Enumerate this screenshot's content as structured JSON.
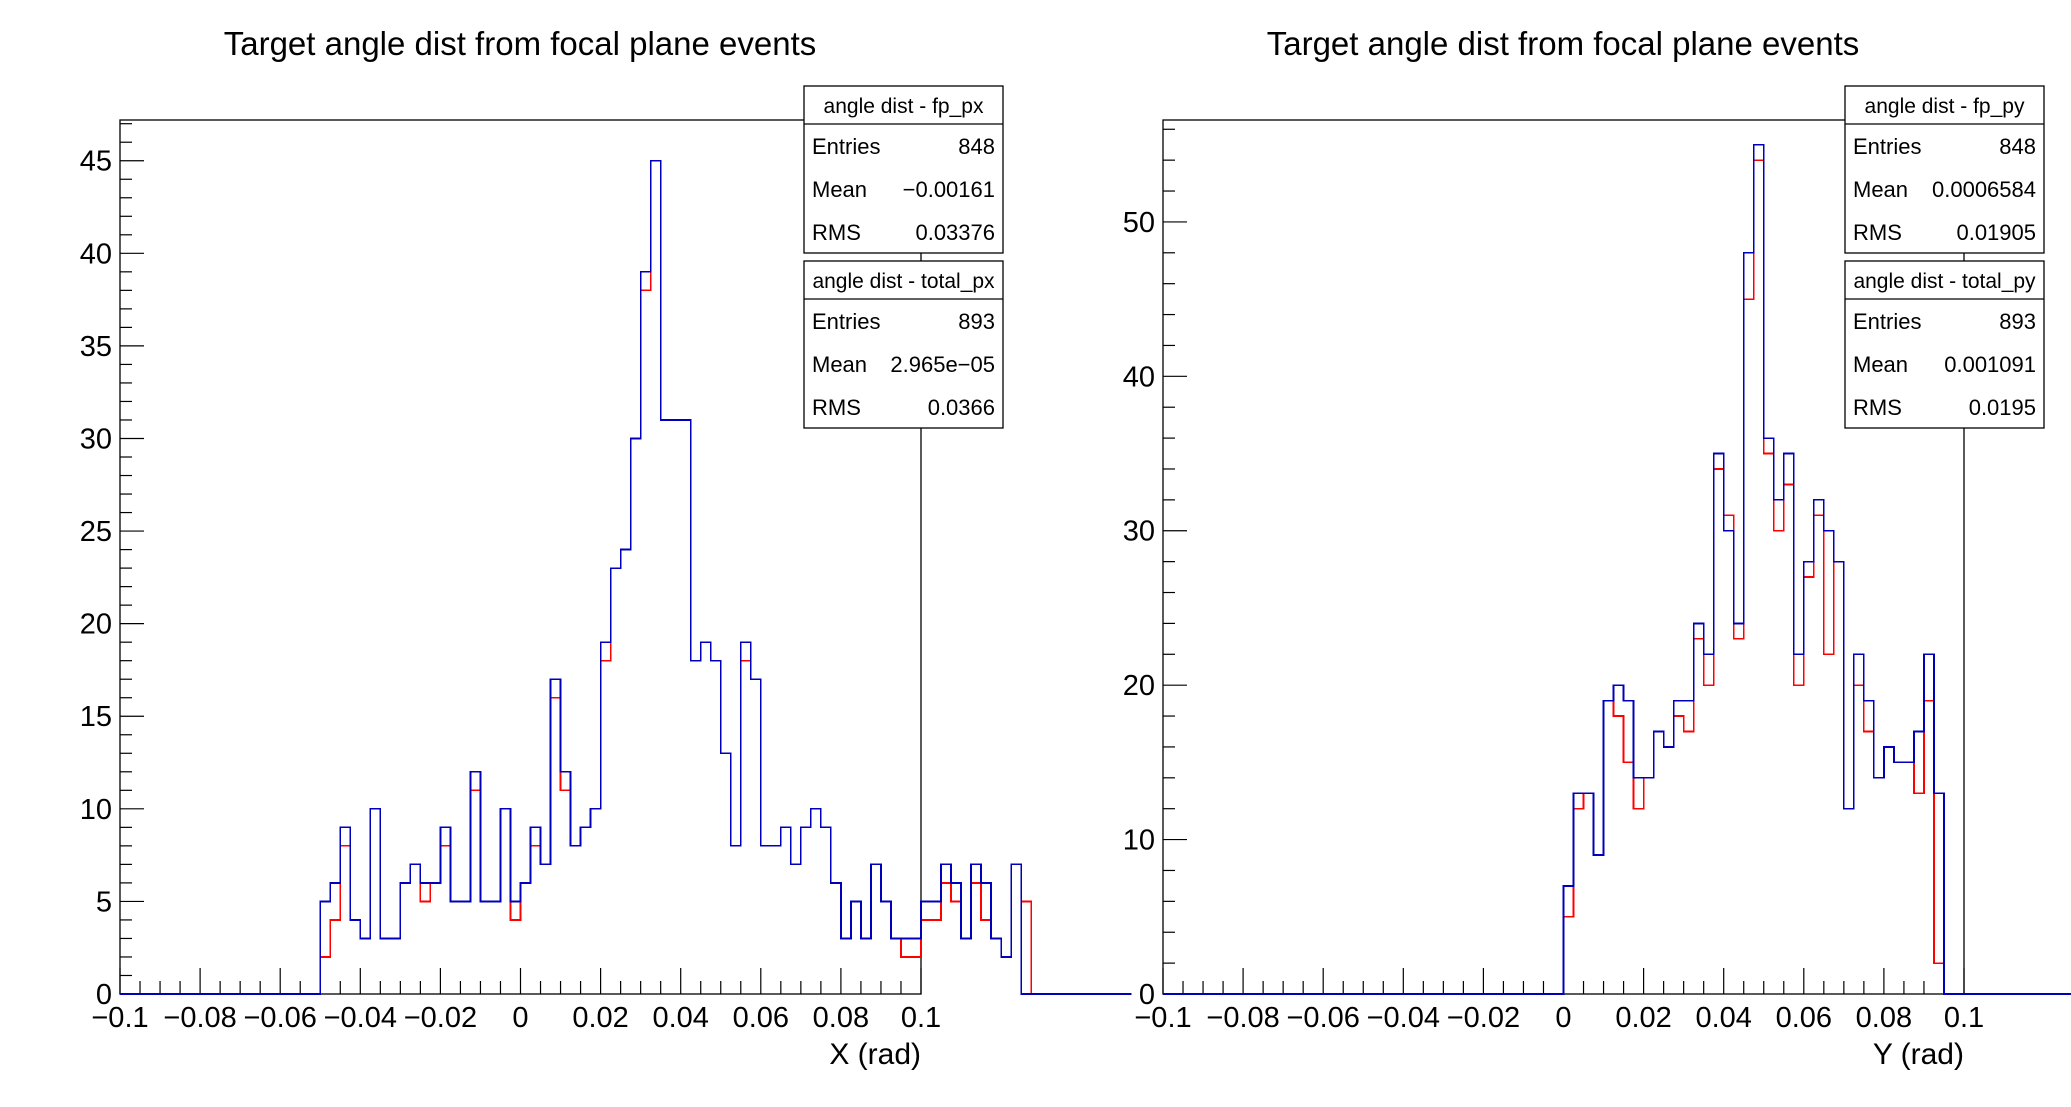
{
  "chart_data": [
    {
      "type": "histogram",
      "title": "Target angle dist from focal plane events",
      "xlabel": "X (rad)",
      "ylabel": "",
      "xlim": [
        -0.1,
        0.1
      ],
      "ylim": [
        0,
        47.2
      ],
      "bin_start": -0.1,
      "bin_width": 0.0025,
      "x_ticks": [
        "-0.1",
        "-0.08",
        "-0.06",
        "-0.04",
        "-0.02",
        "0",
        "0.02",
        "0.04",
        "0.06",
        "0.08",
        "0.1"
      ],
      "y_ticks": [
        "0",
        "5",
        "10",
        "15",
        "20",
        "25",
        "30",
        "35",
        "40",
        "45"
      ],
      "grid": false,
      "series": [
        {
          "name": "angle dist - fp_px",
          "color": "#ff0000",
          "values": [
            0,
            0,
            0,
            0,
            0,
            0,
            0,
            0,
            0,
            0,
            0,
            0,
            0,
            0,
            0,
            0,
            0,
            0,
            0,
            0,
            2,
            4,
            8,
            4,
            3,
            10,
            3,
            3,
            6,
            7,
            5,
            6,
            8,
            5,
            5,
            11,
            5,
            5,
            10,
            4,
            6,
            8,
            7,
            16,
            11,
            8,
            9,
            10,
            18,
            23,
            24,
            30,
            38,
            45,
            31,
            31,
            31,
            18,
            19,
            18,
            13,
            8,
            18,
            17,
            8,
            8,
            9,
            7,
            9,
            10,
            9,
            6,
            3,
            5,
            3,
            7,
            5,
            3,
            2,
            2,
            4,
            4,
            6,
            5,
            3,
            6,
            4,
            3,
            2,
            7,
            5,
            0,
            0,
            0,
            0,
            0,
            0,
            0,
            0,
            0,
            0
          ]
        },
        {
          "name": "angle dist - total_px",
          "color": "#0000bb",
          "values": [
            0,
            0,
            0,
            0,
            0,
            0,
            0,
            0,
            0,
            0,
            0,
            0,
            0,
            0,
            0,
            0,
            0,
            0,
            0,
            0,
            5,
            6,
            9,
            4,
            3,
            10,
            3,
            3,
            6,
            7,
            6,
            6,
            9,
            5,
            5,
            12,
            5,
            5,
            10,
            5,
            6,
            9,
            7,
            17,
            12,
            8,
            9,
            10,
            19,
            23,
            24,
            30,
            39,
            45,
            31,
            31,
            31,
            18,
            19,
            18,
            13,
            8,
            19,
            17,
            8,
            8,
            9,
            7,
            9,
            10,
            9,
            6,
            3,
            5,
            3,
            7,
            5,
            3,
            3,
            3,
            5,
            5,
            7,
            6,
            3,
            7,
            6,
            3,
            2,
            7,
            0,
            0,
            0,
            0,
            0,
            0,
            0,
            0,
            0,
            0,
            0
          ]
        }
      ],
      "stats_boxes": [
        {
          "title": "angle dist - fp_px",
          "rows": [
            [
              "Entries",
              "848"
            ],
            [
              "Mean",
              "−0.00161"
            ],
            [
              "RMS",
              "0.03376"
            ]
          ]
        },
        {
          "title": "angle dist - total_px",
          "rows": [
            [
              "Entries",
              "893"
            ],
            [
              "Mean",
              "2.965e−05"
            ],
            [
              "RMS",
              "0.0366"
            ]
          ]
        }
      ]
    },
    {
      "type": "histogram",
      "title": "Target angle dist from focal plane events",
      "xlabel": "Y (rad)",
      "ylabel": "",
      "xlim": [
        -0.1,
        0.1
      ],
      "ylim": [
        0,
        56.6
      ],
      "bin_start": -0.1,
      "bin_width": 0.0025,
      "x_ticks": [
        "-0.1",
        "-0.08",
        "-0.06",
        "-0.04",
        "-0.02",
        "0",
        "0.02",
        "0.04",
        "0.06",
        "0.08",
        "0.1"
      ],
      "y_ticks": [
        "0",
        "10",
        "20",
        "30",
        "40",
        "50"
      ],
      "grid": false,
      "series": [
        {
          "name": "angle dist - fp_py",
          "color": "#ff0000",
          "values": [
            0,
            0,
            0,
            0,
            0,
            0,
            0,
            0,
            0,
            0,
            0,
            0,
            0,
            0,
            0,
            0,
            0,
            0,
            0,
            0,
            0,
            0,
            0,
            0,
            0,
            0,
            0,
            0,
            0,
            0,
            0,
            0,
            0,
            0,
            0,
            0,
            0,
            0,
            0,
            0,
            5,
            12,
            13,
            9,
            19,
            18,
            15,
            12,
            14,
            17,
            16,
            18,
            17,
            23,
            20,
            34,
            31,
            23,
            45,
            54,
            35,
            30,
            33,
            20,
            27,
            31,
            22,
            28,
            12,
            20,
            17,
            14,
            16,
            15,
            15,
            13,
            19,
            2,
            0,
            0,
            0,
            0,
            0,
            0,
            0,
            0,
            0,
            0,
            0,
            0,
            0,
            0,
            0,
            0,
            0,
            0,
            0,
            0,
            0,
            0
          ]
        },
        {
          "name": "angle dist - total_py",
          "color": "#0000bb",
          "values": [
            0,
            0,
            0,
            0,
            0,
            0,
            0,
            0,
            0,
            0,
            0,
            0,
            0,
            0,
            0,
            0,
            0,
            0,
            0,
            0,
            0,
            0,
            0,
            0,
            0,
            0,
            0,
            0,
            0,
            0,
            0,
            0,
            0,
            0,
            0,
            0,
            0,
            0,
            0,
            0,
            7,
            13,
            13,
            9,
            19,
            20,
            19,
            14,
            14,
            17,
            16,
            19,
            19,
            24,
            22,
            35,
            30,
            24,
            48,
            55,
            36,
            32,
            35,
            22,
            28,
            32,
            30,
            28,
            12,
            22,
            19,
            14,
            16,
            15,
            15,
            17,
            22,
            13,
            0,
            0,
            0,
            0,
            0,
            0,
            0,
            0,
            0,
            0,
            0,
            0,
            0,
            0,
            0,
            0,
            0,
            0,
            0,
            0,
            0,
            0
          ]
        }
      ],
      "stats_boxes": [
        {
          "title": "angle dist - fp_py",
          "rows": [
            [
              "Entries",
              "848"
            ],
            [
              "Mean",
              "0.0006584"
            ],
            [
              "RMS",
              "0.01905"
            ]
          ]
        },
        {
          "title": "angle dist - total_py",
          "rows": [
            [
              "Entries",
              "893"
            ],
            [
              "Mean",
              "0.001091"
            ],
            [
              "RMS",
              "0.0195"
            ]
          ]
        }
      ]
    }
  ]
}
